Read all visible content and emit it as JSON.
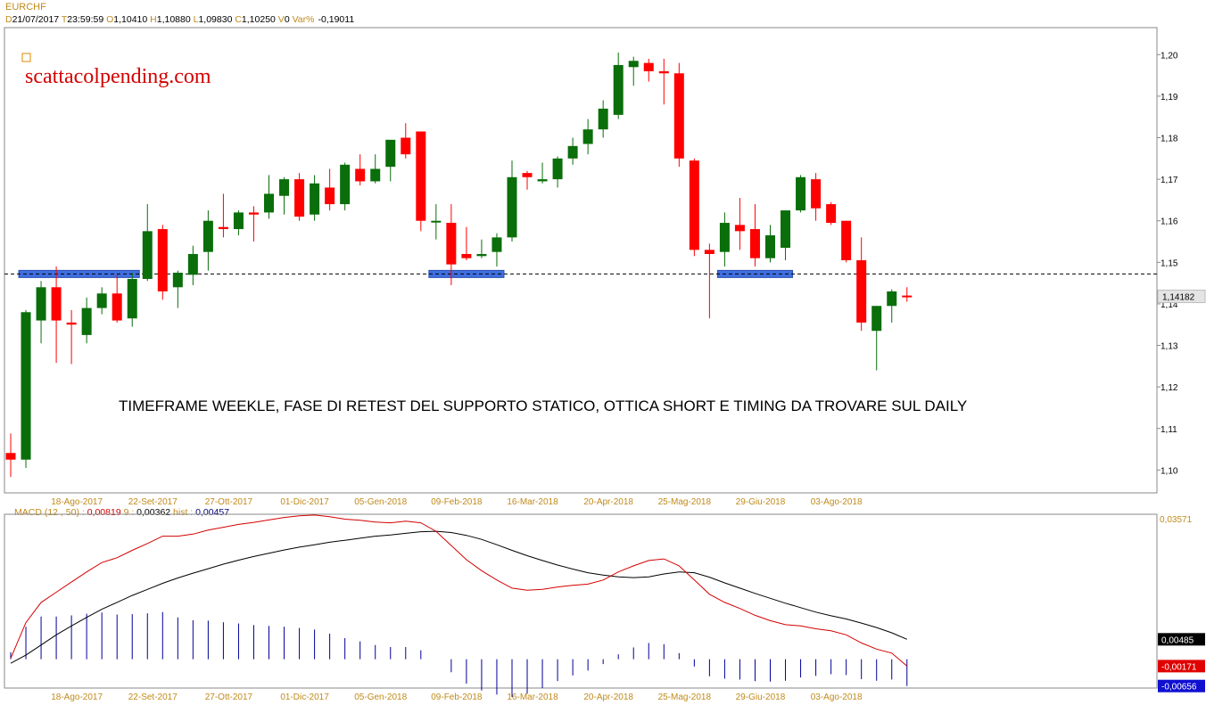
{
  "header": {
    "symbol": "EURCHF",
    "fields": [
      {
        "key": "D",
        "value": "21/07/2017"
      },
      {
        "key": "T",
        "value": "23:59:59"
      },
      {
        "key": "O",
        "value": "1,10410"
      },
      {
        "key": "H",
        "value": "1,10880"
      },
      {
        "key": "L",
        "value": "1,09830"
      },
      {
        "key": "C",
        "value": "1,10250"
      },
      {
        "key": "V",
        "value": "0"
      },
      {
        "key": "Var%",
        "value": "-0,19011"
      }
    ]
  },
  "watermark": "scattacolpending.com",
  "annotation": "TIMEFRAME WEEKLE, FASE DI RETEST DEL SUPPORTO STATICO, OTTICA SHORT E TIMING DA TROVARE SUL DAILY",
  "colors": {
    "up": "#0a6e0a",
    "down": "#ff0000",
    "support": "#3f6fe0",
    "watermark": "#d40000",
    "axis_text": "#c08a1a",
    "macd_line": "#d40000",
    "signal_line": "#000000",
    "hist": "#000099"
  },
  "chart_data": [
    {
      "type": "candlestick",
      "title": "EURCHF",
      "timeframe": "weekly",
      "x_tick_labels": [
        "18-Ago-2017",
        "22-Set-2017",
        "27-Ott-2017",
        "01-Dic-2017",
        "05-Gen-2018",
        "09-Feb-2018",
        "16-Mar-2018",
        "20-Apr-2018",
        "25-Mag-2018",
        "29-Giu-2018",
        "03-Ago-2018"
      ],
      "y_tick_labels": [
        "1,10",
        "1,11",
        "1,12",
        "1,13",
        "1,14",
        "1,15",
        "1,16",
        "1,17",
        "1,18",
        "1,19",
        "1,20"
      ],
      "ylim": [
        1.0945,
        1.2065
      ],
      "last_price_label": "1,14182",
      "support_level": 1.1472,
      "support_zones": [
        [
          1,
          8
        ],
        [
          28,
          32
        ],
        [
          47,
          51
        ]
      ],
      "ohlc": [
        [
          1.1041,
          1.1088,
          1.0983,
          1.1025
        ],
        [
          1.1025,
          1.1385,
          1.1005,
          1.138
        ],
        [
          1.136,
          1.1455,
          1.1305,
          1.144
        ],
        [
          1.144,
          1.149,
          1.1258,
          1.136
        ],
        [
          1.1355,
          1.1385,
          1.1255,
          1.135
        ],
        [
          1.1325,
          1.1415,
          1.1305,
          1.139
        ],
        [
          1.139,
          1.144,
          1.1375,
          1.1425
        ],
        [
          1.1425,
          1.147,
          1.1355,
          1.136
        ],
        [
          1.1365,
          1.1475,
          1.1345,
          1.146
        ],
        [
          1.146,
          1.164,
          1.1455,
          1.1575
        ],
        [
          1.158,
          1.159,
          1.141,
          1.143
        ],
        [
          1.144,
          1.148,
          1.139,
          1.1475
        ],
        [
          1.147,
          1.154,
          1.1445,
          1.152
        ],
        [
          1.1525,
          1.1625,
          1.148,
          1.16
        ],
        [
          1.1585,
          1.1665,
          1.156,
          1.158
        ],
        [
          1.158,
          1.1625,
          1.1565,
          1.162
        ],
        [
          1.162,
          1.1635,
          1.155,
          1.1615
        ],
        [
          1.162,
          1.171,
          1.1605,
          1.1665
        ],
        [
          1.166,
          1.1705,
          1.1615,
          1.17
        ],
        [
          1.17,
          1.1715,
          1.16,
          1.161
        ],
        [
          1.1615,
          1.171,
          1.16,
          1.169
        ],
        [
          1.168,
          1.1725,
          1.1625,
          1.164
        ],
        [
          1.164,
          1.174,
          1.1625,
          1.1735
        ],
        [
          1.1725,
          1.176,
          1.1685,
          1.1695
        ],
        [
          1.1695,
          1.176,
          1.169,
          1.1725
        ],
        [
          1.173,
          1.179,
          1.1695,
          1.1795
        ],
        [
          1.18,
          1.1835,
          1.175,
          1.176
        ],
        [
          1.1815,
          1.1815,
          1.1575,
          1.16
        ],
        [
          1.16,
          1.164,
          1.1555,
          1.16
        ],
        [
          1.1595,
          1.164,
          1.1445,
          1.1495
        ],
        [
          1.152,
          1.1585,
          1.1505,
          1.151
        ],
        [
          1.1515,
          1.1555,
          1.151,
          1.152
        ],
        [
          1.1525,
          1.157,
          1.149,
          1.156
        ],
        [
          1.156,
          1.1745,
          1.155,
          1.1705
        ],
        [
          1.1715,
          1.172,
          1.1675,
          1.1705
        ],
        [
          1.1695,
          1.174,
          1.169,
          1.17
        ],
        [
          1.17,
          1.1755,
          1.168,
          1.175
        ],
        [
          1.175,
          1.18,
          1.1735,
          1.178
        ],
        [
          1.1785,
          1.1845,
          1.176,
          1.182
        ],
        [
          1.182,
          1.189,
          1.18,
          1.187
        ],
        [
          1.1855,
          1.2005,
          1.1845,
          1.1975
        ],
        [
          1.197,
          1.1995,
          1.1925,
          1.1985
        ],
        [
          1.198,
          1.199,
          1.1935,
          1.196
        ],
        [
          1.196,
          1.199,
          1.188,
          1.1955
        ],
        [
          1.1955,
          1.198,
          1.173,
          1.175
        ],
        [
          1.1745,
          1.175,
          1.1515,
          1.153
        ],
        [
          1.153,
          1.1545,
          1.1365,
          1.152
        ],
        [
          1.1525,
          1.162,
          1.149,
          1.1595
        ],
        [
          1.159,
          1.1655,
          1.153,
          1.1575
        ],
        [
          1.158,
          1.164,
          1.149,
          1.151
        ],
        [
          1.151,
          1.159,
          1.15,
          1.1565
        ],
        [
          1.1535,
          1.1625,
          1.1505,
          1.1625
        ],
        [
          1.1625,
          1.171,
          1.162,
          1.1705
        ],
        [
          1.17,
          1.1715,
          1.16,
          1.163
        ],
        [
          1.164,
          1.1645,
          1.159,
          1.1595
        ],
        [
          1.16,
          1.16,
          1.15,
          1.1505
        ],
        [
          1.1505,
          1.156,
          1.1335,
          1.1355
        ],
        [
          1.1335,
          1.1395,
          1.124,
          1.1395
        ],
        [
          1.1395,
          1.1435,
          1.1355,
          1.143
        ],
        [
          1.142,
          1.144,
          1.1405,
          1.1418
        ]
      ]
    },
    {
      "type": "line",
      "title": "MACD",
      "params": "(12 , 50)",
      "header_values": {
        "macd": "0,00819",
        "signal_period": "9",
        "signal": "0,00362",
        "hist_label": "hist",
        "hist": "0,00457"
      },
      "axis_labels": {
        "top": "0,03571",
        "signal_last": "0,00485",
        "macd_last": "-0,00171",
        "hist_last": "-0,00656"
      },
      "ylim": [
        -0.0071,
        0.0357
      ],
      "series": [
        {
          "values": [
            0.0002,
            0.009,
            0.014,
            0.0165,
            0.019,
            0.0215,
            0.0238,
            0.025,
            0.0268,
            0.0285,
            0.0303,
            0.0303,
            0.0308,
            0.0318,
            0.0325,
            0.0332,
            0.0337,
            0.0343,
            0.0349,
            0.0353,
            0.0355,
            0.0351,
            0.0345,
            0.0342,
            0.0338,
            0.0336,
            0.034,
            0.0336,
            0.0315,
            0.028,
            0.0245,
            0.0218,
            0.0195,
            0.0175,
            0.017,
            0.0172,
            0.0178,
            0.0182,
            0.0185,
            0.0195,
            0.0215,
            0.023,
            0.0243,
            0.0247,
            0.023,
            0.0195,
            0.016,
            0.014,
            0.0125,
            0.0108,
            0.0095,
            0.0085,
            0.0082,
            0.0075,
            0.007,
            0.006,
            0.004,
            0.0025,
            0.0015,
            -0.0017
          ]
        },
        {
          "values": [
            -0.001,
            0.001,
            0.0035,
            0.006,
            0.0082,
            0.0103,
            0.0123,
            0.014,
            0.0157,
            0.0172,
            0.0187,
            0.02,
            0.0212,
            0.0223,
            0.0234,
            0.0244,
            0.0253,
            0.0261,
            0.0269,
            0.0276,
            0.0282,
            0.0288,
            0.0293,
            0.0298,
            0.0303,
            0.0306,
            0.031,
            0.0314,
            0.0315,
            0.0312,
            0.0305,
            0.0295,
            0.0282,
            0.0268,
            0.0255,
            0.0243,
            0.0232,
            0.0222,
            0.0213,
            0.0207,
            0.0203,
            0.0201,
            0.0203,
            0.021,
            0.0215,
            0.0213,
            0.0202,
            0.0188,
            0.0175,
            0.0162,
            0.015,
            0.0138,
            0.0127,
            0.0116,
            0.0107,
            0.0099,
            0.0089,
            0.0078,
            0.0065,
            0.0049
          ]
        }
      ],
      "histogram": [
        0.0017,
        0.008,
        0.0105,
        0.0105,
        0.0108,
        0.0112,
        0.0115,
        0.011,
        0.0111,
        0.0113,
        0.0116,
        0.0103,
        0.0096,
        0.0095,
        0.0091,
        0.0088,
        0.0084,
        0.0082,
        0.008,
        0.0077,
        0.0073,
        0.0063,
        0.0052,
        0.0044,
        0.0035,
        0.003,
        0.003,
        0.0022,
        0.0,
        -0.0032,
        -0.006,
        -0.0077,
        -0.0087,
        -0.0093,
        -0.0085,
        -0.0071,
        -0.0054,
        -0.004,
        -0.0028,
        -0.0012,
        0.0012,
        0.0029,
        0.004,
        0.0037,
        0.0015,
        -0.0018,
        -0.0042,
        -0.0048,
        -0.005,
        -0.0054,
        -0.0055,
        -0.0053,
        -0.0045,
        -0.0041,
        -0.0037,
        -0.0039,
        -0.0049,
        -0.0053,
        -0.005,
        -0.0066
      ]
    }
  ]
}
